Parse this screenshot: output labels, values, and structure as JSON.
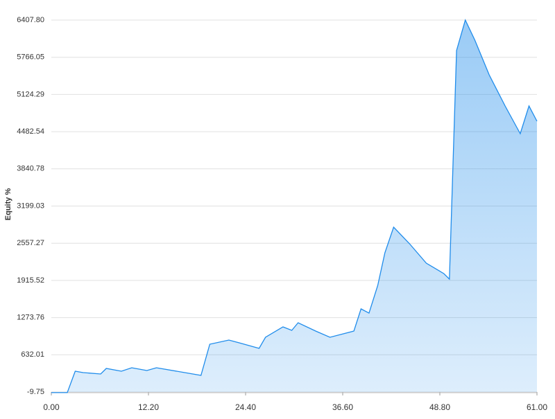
{
  "chart_data": {
    "type": "area",
    "y_label": "Equity %",
    "x": [
      0,
      2.0,
      3.0,
      4.0,
      6.2,
      6.9,
      8.8,
      10.1,
      12.0,
      13.2,
      18.8,
      19.9,
      22.3,
      23.6,
      26.1,
      26.9,
      29.1,
      30.2,
      31.0,
      33.2,
      35.0,
      38.0,
      38.9,
      39.9,
      41.0,
      41.9,
      43.0,
      45.0,
      47.1,
      49.3,
      50.0,
      50.9,
      52.0,
      53.2,
      55.0,
      57.0,
      58.9,
      60.0,
      61.0
    ],
    "values": [
      -20,
      -20,
      349,
      325,
      301,
      397,
      349,
      408,
      361,
      408,
      277,
      815,
      886,
      839,
      743,
      934,
      1114,
      1054,
      1185,
      1042,
      934,
      1042,
      1424,
      1352,
      1830,
      2392,
      2834,
      2548,
      2213,
      2034,
      1938,
      5882,
      6408,
      6061,
      5464,
      4926,
      4448,
      4926,
      4663
    ],
    "color": "#1f8ceb",
    "xlim": [
      0,
      61
    ],
    "xticks": [
      {
        "value": 0,
        "label": "0.00"
      },
      {
        "value": 12.2,
        "label": "12.20"
      },
      {
        "value": 24.4,
        "label": "24.40"
      },
      {
        "value": 36.6,
        "label": "36.60"
      },
      {
        "value": 48.8,
        "label": "48.80"
      },
      {
        "value": 61,
        "label": "61.00"
      }
    ],
    "ylim": [
      -9.75,
      6407.8
    ],
    "yticks": [
      -9.75,
      632.01,
      1273.76,
      1915.52,
      2557.27,
      3199.03,
      3840.78,
      4482.54,
      5124.29,
      5766.05,
      {
        "value": 6407.8,
        "label": "6407.80"
      }
    ],
    "grid": true
  }
}
